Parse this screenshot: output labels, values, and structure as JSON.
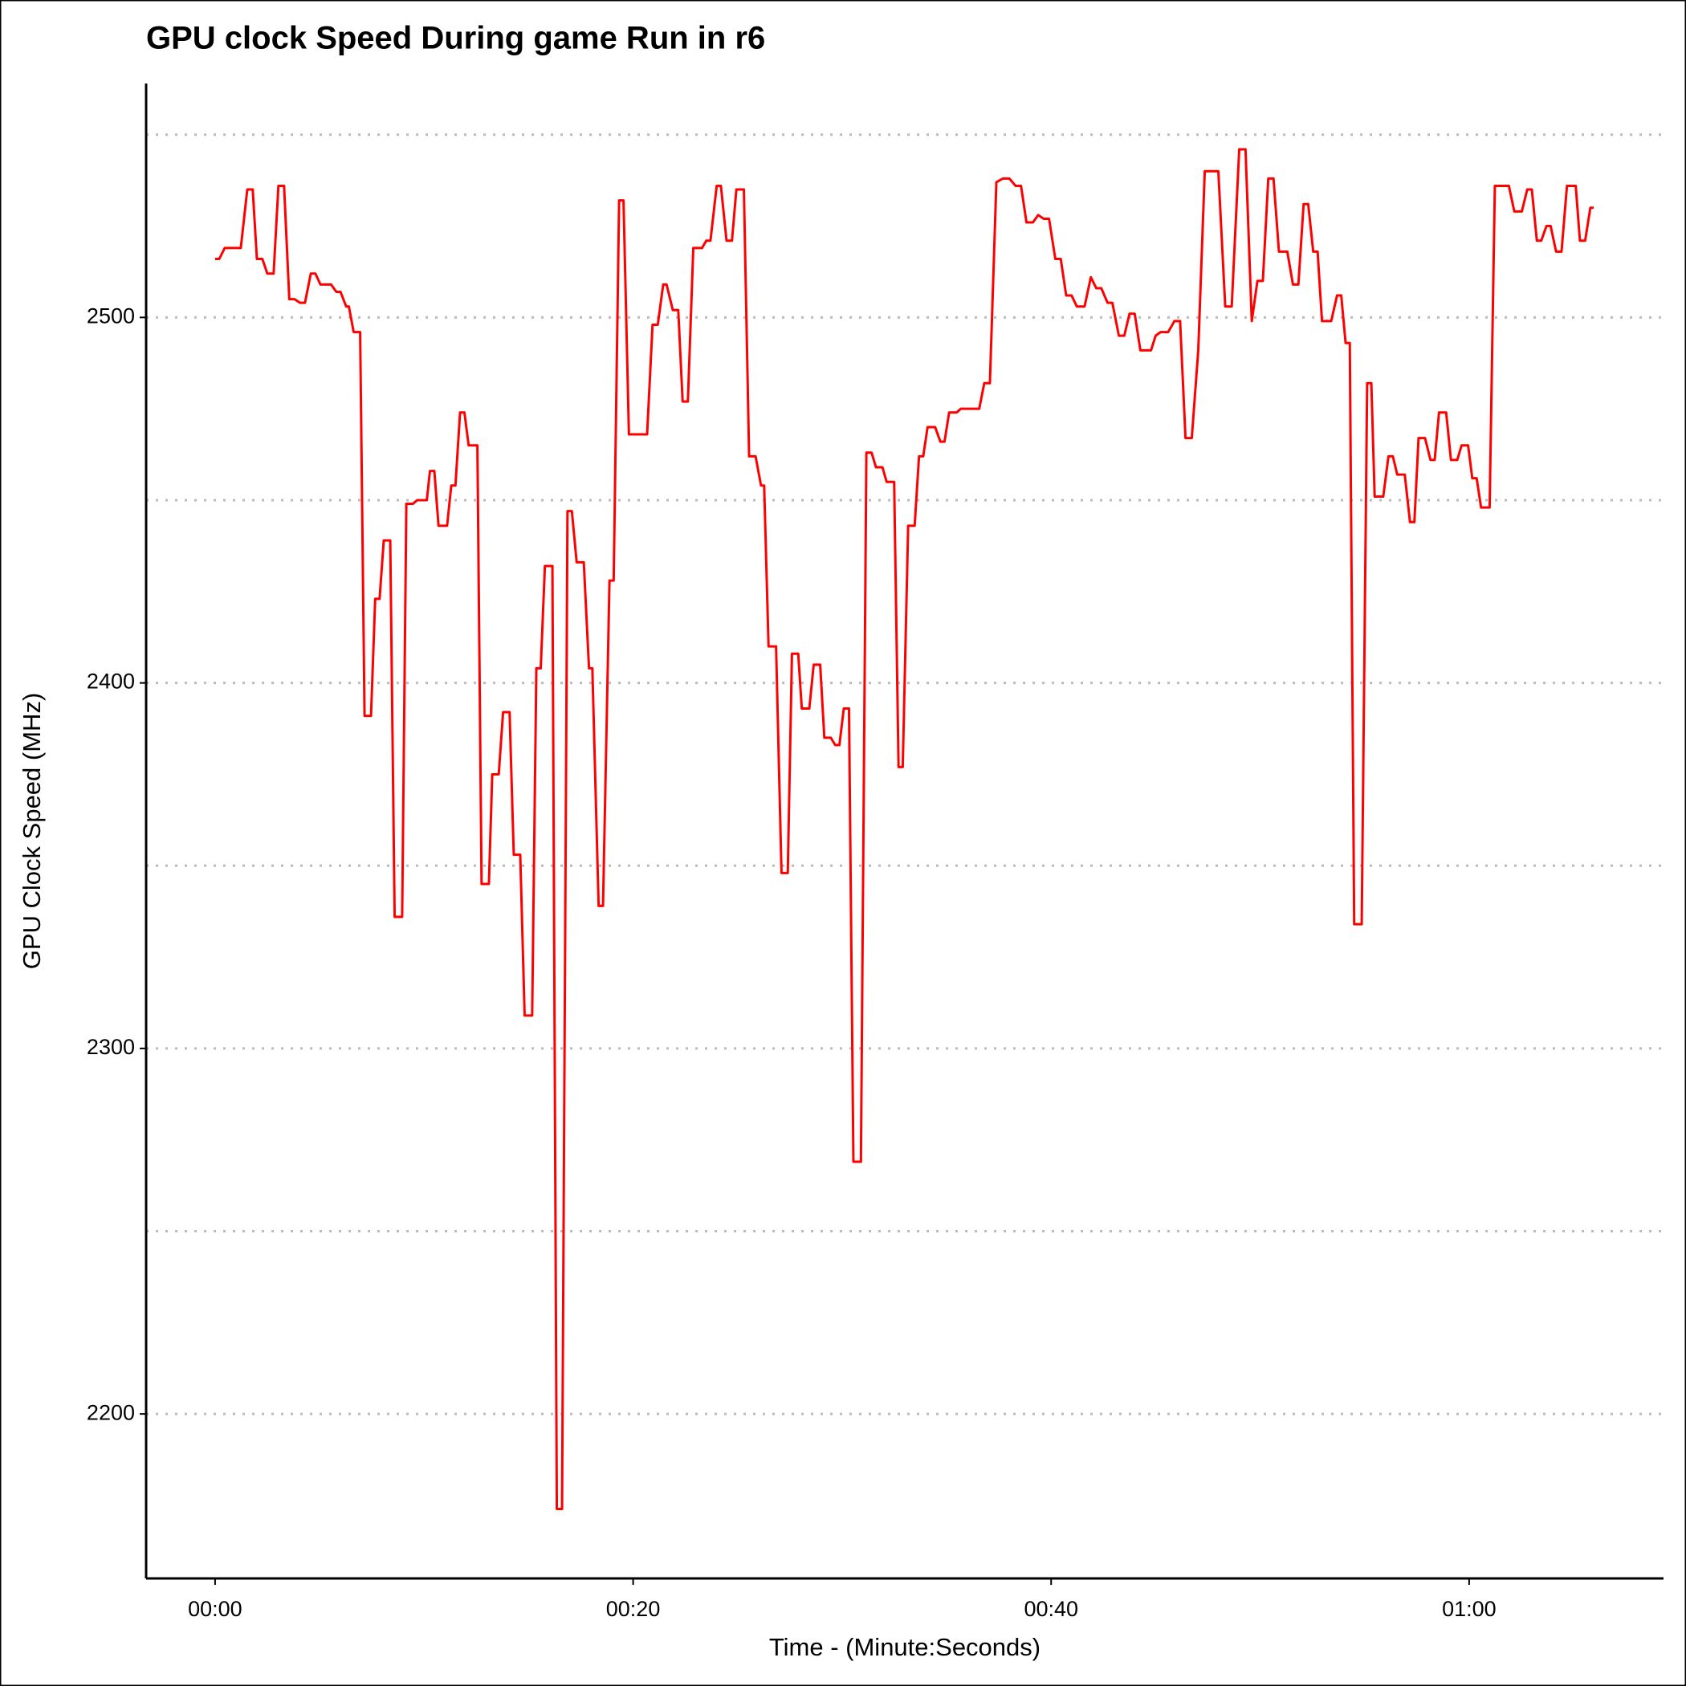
{
  "chart_data": {
    "type": "line",
    "title": "GPU clock Speed During game Run in r6",
    "x_label": "Time - (Minute:Seconds)",
    "y_label": "GPU Clock Speed (MHz)",
    "color": "#ff0000",
    "xlim": [
      -3.3,
      69.3
    ],
    "ylim": [
      2155,
      2564
    ],
    "xticks": [
      {
        "value": 0,
        "label": "00:00"
      },
      {
        "value": 20,
        "label": "00:20"
      },
      {
        "value": 40,
        "label": "00:40"
      },
      {
        "value": 60,
        "label": "01:00"
      }
    ],
    "yticks": [
      2200,
      2300,
      2400,
      2500
    ],
    "minor_yticks": [
      2250,
      2350,
      2450,
      2550
    ],
    "grid": true,
    "x": [
      0,
      0.2,
      0.46,
      1.23,
      1.54,
      1.8,
      2.0,
      2.26,
      2.5,
      2.8,
      3.03,
      3.3,
      3.55,
      3.8,
      4.06,
      4.3,
      4.58,
      4.8,
      5.04,
      5.55,
      5.8,
      6.0,
      6.27,
      6.4,
      6.63,
      6.94,
      7.15,
      7.46,
      7.66,
      7.87,
      8.07,
      8.38,
      8.59,
      8.95,
      9.15,
      9.46,
      9.67,
      10.13,
      10.28,
      10.49,
      10.69,
      11.1,
      11.3,
      11.5,
      11.72,
      11.93,
      12.13,
      12.55,
      12.75,
      13.1,
      13.26,
      13.57,
      13.78,
      14.09,
      14.29,
      14.6,
      14.81,
      15.17,
      15.37,
      15.58,
      15.78,
      16.14,
      16.35,
      16.6,
      16.86,
      17.07,
      17.3,
      17.64,
      17.89,
      18.05,
      18.35,
      18.56,
      18.87,
      19.07,
      19.33,
      19.54,
      19.8,
      20.67,
      20.93,
      21.18,
      21.44,
      21.6,
      21.9,
      22.16,
      22.37,
      22.62,
      22.88,
      23.3,
      23.5,
      23.7,
      24.0,
      24.2,
      24.47,
      24.73,
      24.94,
      25.3,
      25.55,
      25.86,
      26.12,
      26.27,
      26.48,
      26.84,
      27.1,
      27.4,
      27.6,
      27.9,
      28.07,
      28.43,
      28.64,
      28.95,
      29.15,
      29.46,
      29.67,
      29.87,
      30.08,
      30.33,
      30.54,
      30.9,
      31.16,
      31.41,
      31.62,
      31.93,
      32.13,
      32.49,
      32.7,
      32.9,
      33.16,
      33.47,
      33.68,
      33.88,
      34.09,
      34.45,
      34.7,
      34.9,
      35.12,
      35.48,
      35.68,
      36.56,
      36.8,
      37.07,
      37.38,
      37.69,
      38.0,
      38.3,
      38.56,
      38.82,
      39.13,
      39.38,
      39.64,
      39.9,
      40.2,
      40.46,
      40.72,
      40.98,
      41.23,
      41.6,
      41.9,
      42.16,
      42.4,
      42.7,
      42.93,
      43.24,
      43.5,
      43.75,
      44.0,
      44.27,
      44.78,
      45.0,
      45.24,
      45.6,
      45.9,
      46.17,
      46.43,
      46.73,
      47.04,
      47.35,
      48.0,
      48.33,
      48.64,
      49.0,
      49.3,
      49.6,
      49.87,
      50.13,
      50.39,
      50.64,
      50.9,
      51.3,
      51.57,
      51.83,
      52.08,
      52.3,
      52.54,
      52.75,
      52.96,
      53.4,
      53.68,
      53.88,
      54.09,
      54.29,
      54.5,
      54.86,
      55.12,
      55.32,
      55.48,
      55.89,
      56.14,
      56.35,
      56.56,
      56.92,
      57.17,
      57.38,
      57.58,
      57.89,
      58.15,
      58.35,
      58.56,
      58.9,
      59.13,
      59.43,
      59.64,
      59.95,
      60.15,
      60.36,
      60.57,
      60.98,
      61.23,
      61.9,
      62.16,
      62.52,
      62.78,
      63.0,
      63.24,
      63.45,
      63.7,
      63.9,
      64.16,
      64.42,
      64.68,
      65.1,
      65.3,
      65.55,
      65.8,
      65.96
    ],
    "values": [
      2516,
      2516,
      2519,
      2519,
      2535,
      2535,
      2516,
      2516,
      2512,
      2512,
      2536,
      2536,
      2505,
      2505,
      2504,
      2504,
      2512,
      2512,
      2509,
      2509,
      2507,
      2507,
      2503,
      2503,
      2496,
      2496,
      2391,
      2391,
      2423,
      2423,
      2439,
      2439,
      2336,
      2336,
      2449,
      2449,
      2450,
      2450,
      2458,
      2458,
      2443,
      2443,
      2454,
      2454,
      2474,
      2474,
      2465,
      2465,
      2345,
      2345,
      2375,
      2375,
      2392,
      2392,
      2353,
      2353,
      2309,
      2309,
      2404,
      2404,
      2432,
      2432,
      2174,
      2174,
      2447,
      2447,
      2433,
      2433,
      2404,
      2404,
      2339,
      2339,
      2428,
      2428,
      2532,
      2532,
      2468,
      2468,
      2498,
      2498,
      2509,
      2509,
      2502,
      2502,
      2477,
      2477,
      2519,
      2519,
      2521,
      2521,
      2536,
      2536,
      2521,
      2521,
      2535,
      2535,
      2462,
      2462,
      2454,
      2454,
      2410,
      2410,
      2348,
      2348,
      2408,
      2408,
      2393,
      2393,
      2405,
      2405,
      2385,
      2385,
      2383,
      2383,
      2393,
      2393,
      2269,
      2269,
      2463,
      2463,
      2459,
      2459,
      2455,
      2455,
      2377,
      2377,
      2443,
      2443,
      2462,
      2462,
      2470,
      2470,
      2466,
      2466,
      2474,
      2474,
      2475,
      2475,
      2482,
      2482,
      2537,
      2538,
      2538,
      2536,
      2536,
      2526,
      2526,
      2528,
      2527,
      2527,
      2516,
      2516,
      2506,
      2506,
      2503,
      2503,
      2511,
      2508,
      2508,
      2504,
      2504,
      2495,
      2495,
      2501,
      2501,
      2491,
      2491,
      2495,
      2496,
      2496,
      2499,
      2499,
      2467,
      2467,
      2491,
      2540,
      2540,
      2503,
      2503,
      2546,
      2546,
      2499,
      2510,
      2510,
      2538,
      2538,
      2518,
      2518,
      2509,
      2509,
      2531,
      2531,
      2518,
      2518,
      2499,
      2499,
      2506,
      2506,
      2493,
      2493,
      2334,
      2334,
      2482,
      2482,
      2451,
      2451,
      2462,
      2462,
      2457,
      2457,
      2444,
      2444,
      2467,
      2467,
      2461,
      2461,
      2474,
      2474,
      2461,
      2461,
      2465,
      2465,
      2456,
      2456,
      2448,
      2448,
      2536,
      2536,
      2529,
      2529,
      2535,
      2535,
      2521,
      2521,
      2525,
      2525,
      2518,
      2518,
      2536,
      2536,
      2521,
      2521,
      2530,
      2530
    ]
  }
}
